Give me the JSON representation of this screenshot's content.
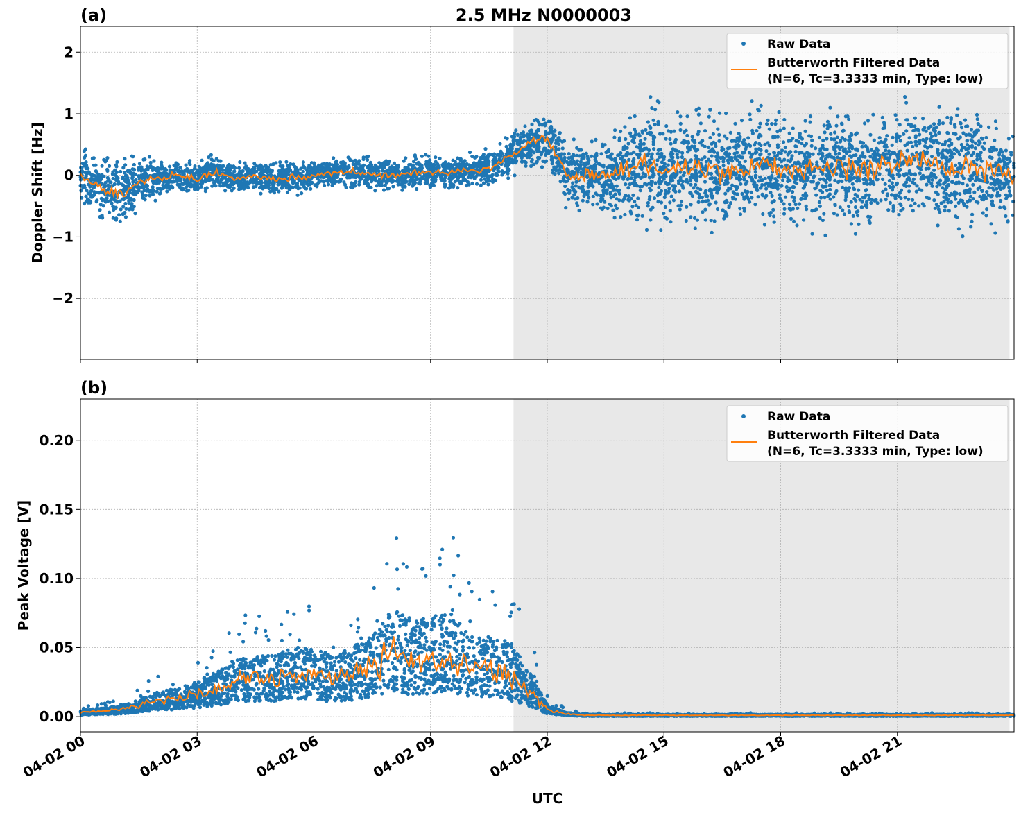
{
  "chart_data": [
    {
      "type": "scatter+line",
      "panel_label": "(a)",
      "title": "2.5 MHz N0000003",
      "ylabel": "Doppler Shift [Hz]",
      "xlabel": "",
      "ylim": [
        -2.99,
        2.42
      ],
      "yticks": [
        2,
        1,
        0,
        -1,
        -2
      ],
      "ytick_labels": [
        "2",
        "1",
        "0",
        "−1",
        "−2"
      ],
      "xlim_hours": [
        0,
        24
      ],
      "grid": true,
      "legend": "top-right",
      "shaded_region_utc": [
        "04-02 11:08",
        "04-02 23:53"
      ],
      "x_hours": [
        0,
        0.5,
        1,
        1.5,
        2,
        2.5,
        3,
        3.5,
        4,
        4.5,
        5,
        5.5,
        6,
        6.5,
        7,
        7.5,
        8,
        8.5,
        9,
        9.5,
        10,
        10.5,
        11,
        11.5,
        12,
        12.5,
        13,
        13.5,
        14,
        14.5,
        15,
        15.5,
        16,
        16.5,
        17,
        17.5,
        18,
        18.5,
        19,
        19.5,
        20,
        20.5,
        21,
        21.5,
        22,
        22.5,
        23,
        23.5,
        24
      ],
      "filtered": [
        0,
        -0.2,
        -0.3,
        -0.1,
        -0.05,
        0,
        -0.05,
        0.05,
        -0.05,
        0,
        -0.05,
        -0.05,
        0,
        0.05,
        0.05,
        0,
        0,
        0.05,
        0.05,
        0.05,
        0.1,
        0.1,
        0.3,
        0.5,
        0.6,
        0,
        0,
        0,
        0.1,
        0.2,
        0.1,
        0.15,
        0.1,
        0.05,
        0.1,
        0.15,
        0.1,
        0.05,
        0.1,
        0.15,
        0.05,
        0.1,
        0.2,
        0.25,
        0.2,
        0.1,
        0.15,
        0.05,
        0
      ],
      "raw_spread": [
        0.5,
        0.6,
        0.6,
        0.5,
        0.35,
        0.3,
        0.3,
        0.3,
        0.3,
        0.3,
        0.3,
        0.3,
        0.3,
        0.3,
        0.3,
        0.3,
        0.3,
        0.3,
        0.3,
        0.3,
        0.3,
        0.35,
        0.4,
        0.45,
        0.5,
        0.6,
        0.6,
        0.7,
        1.0,
        1.1,
        1.1,
        1.1,
        1.1,
        1.1,
        1.1,
        1.1,
        1.1,
        1.1,
        1.1,
        1.1,
        1.1,
        1.1,
        1.1,
        1.1,
        1.1,
        1.1,
        1.1,
        1.0,
        0.9
      ],
      "legend_entries": [
        "Raw Data",
        "Butterworth Filtered Data",
        "(N=6, Tc=3.3333 min, Type: low)"
      ],
      "colors": {
        "raw": "#1f77b4",
        "filtered": "#ff7f0e",
        "shade": "#e8e8e8"
      }
    },
    {
      "type": "scatter+line",
      "panel_label": "(b)",
      "ylabel": "Peak Voltage [V]",
      "xlabel": "UTC",
      "ylim": [
        -0.011,
        0.23
      ],
      "yticks": [
        0,
        0.05,
        0.1,
        0.15,
        0.2
      ],
      "ytick_labels": [
        "0.00",
        "0.05",
        "0.10",
        "0.15",
        "0.20"
      ],
      "xticks": [
        "04-02 00",
        "04-02 03",
        "04-02 06",
        "04-02 09",
        "04-02 12",
        "04-02 15",
        "04-02 18",
        "04-02 21"
      ],
      "xlim_hours": [
        0,
        24
      ],
      "grid": true,
      "legend": "top-right",
      "shaded_region_utc": [
        "04-02 11:08",
        "04-02 23:53"
      ],
      "filtered": [
        0.003,
        0.004,
        0.005,
        0.008,
        0.012,
        0.013,
        0.016,
        0.02,
        0.026,
        0.028,
        0.028,
        0.03,
        0.03,
        0.026,
        0.03,
        0.035,
        0.045,
        0.04,
        0.04,
        0.045,
        0.035,
        0.035,
        0.03,
        0.02,
        0.005,
        0.002,
        0.001,
        0.001,
        0.001,
        0.001,
        0.001,
        0.001,
        0.001,
        0.001,
        0.001,
        0.001,
        0.001,
        0.001,
        0.001,
        0.001,
        0.001,
        0.001,
        0.001,
        0.001,
        0.001,
        0.001,
        0.001,
        0.001,
        0.001
      ],
      "raw_spread": [
        0.003,
        0.004,
        0.005,
        0.008,
        0.012,
        0.014,
        0.018,
        0.022,
        0.028,
        0.03,
        0.03,
        0.035,
        0.035,
        0.03,
        0.035,
        0.04,
        0.055,
        0.05,
        0.05,
        0.055,
        0.04,
        0.04,
        0.04,
        0.025,
        0.006,
        0.002,
        0.001,
        0.001,
        0.001,
        0.001,
        0.001,
        0.001,
        0.001,
        0.001,
        0.001,
        0.001,
        0.001,
        0.001,
        0.001,
        0.001,
        0.001,
        0.001,
        0.001,
        0.001,
        0.001,
        0.001,
        0.001,
        0.001,
        0.001
      ],
      "legend_entries": [
        "Raw Data",
        "Butterworth Filtered Data",
        "(N=6, Tc=3.3333 min, Type: low)"
      ],
      "colors": {
        "raw": "#1f77b4",
        "filtered": "#ff7f0e",
        "shade": "#e8e8e8"
      }
    }
  ]
}
